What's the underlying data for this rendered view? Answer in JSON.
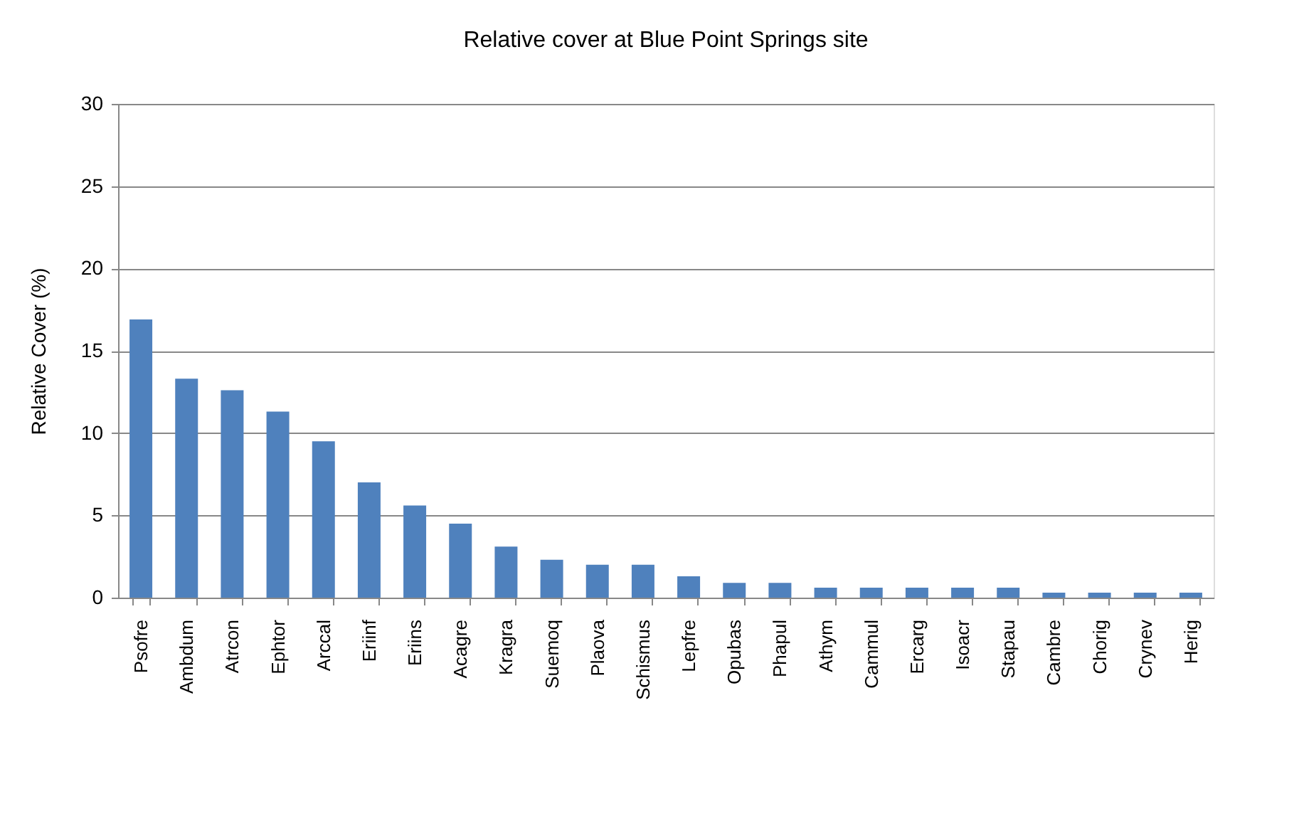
{
  "chart_data": {
    "type": "bar",
    "title": "Relative cover at Blue Point Springs site",
    "ylabel": "Relative Cover (%)",
    "categories": [
      "Psofre",
      "Ambdum",
      "Atrcon",
      "Ephtor",
      "Arccal",
      "Eriinf",
      "Eriins",
      "Acagre",
      "Kragra",
      "Suemoq",
      "Plaova",
      "Schismus",
      "Lepfre",
      "Opubas",
      "Phapul",
      "Athym",
      "Cammul",
      "Ercarg",
      "Isoacr",
      "Stapau",
      "Cambre",
      "Chorig",
      "Crynev",
      "Herig"
    ],
    "values": [
      16.9,
      13.3,
      12.6,
      11.3,
      9.5,
      7.0,
      5.6,
      4.5,
      3.1,
      2.3,
      2.0,
      2.0,
      1.3,
      0.9,
      0.9,
      0.6,
      0.6,
      0.6,
      0.6,
      0.6,
      0.3,
      0.3,
      0.3,
      0.3
    ],
    "color": "#4f81bd",
    "ylim": [
      0,
      30
    ],
    "yticks": [
      0,
      5,
      10,
      15,
      20,
      25,
      30
    ],
    "grid": "y"
  }
}
